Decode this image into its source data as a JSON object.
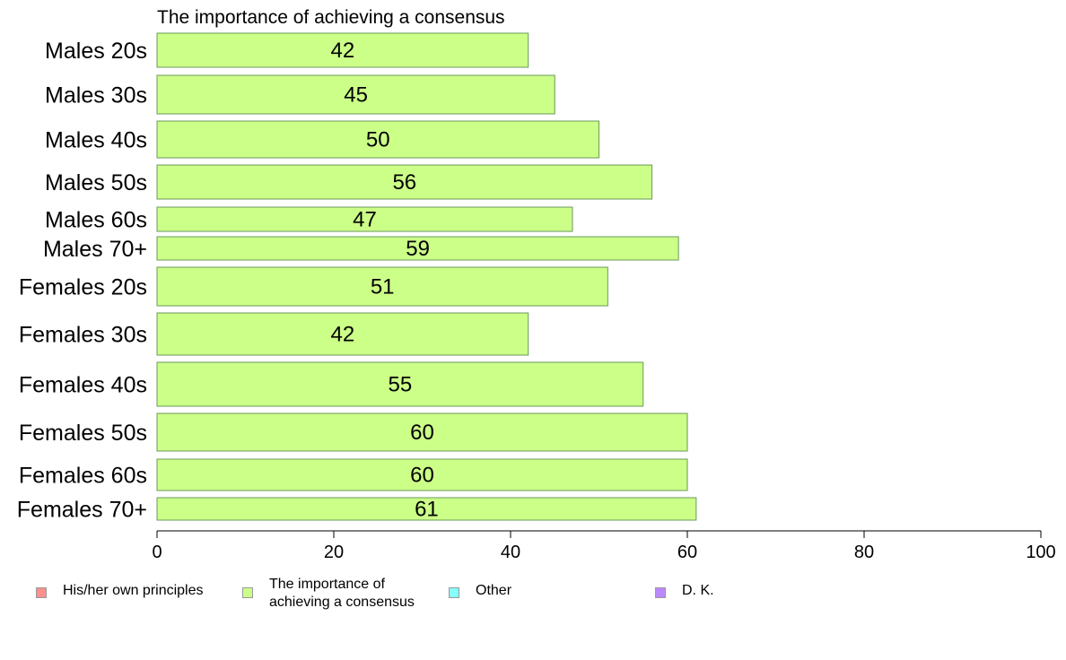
{
  "chart_data": {
    "type": "bar",
    "orientation": "horizontal",
    "title": "The importance of achieving a consensus",
    "categories": [
      "Males 20s",
      "Males 30s",
      "Males 40s",
      "Males 50s",
      "Males 60s",
      "Males 70+",
      "Females 20s",
      "Females 30s",
      "Females 40s",
      "Females 50s",
      "Females 60s",
      "Females 70+"
    ],
    "series": [
      {
        "name": "The importance of achieving a consensus",
        "color": "#ccff88",
        "values": [
          42,
          45,
          50,
          56,
          47,
          59,
          51,
          42,
          55,
          60,
          60,
          61
        ]
      }
    ],
    "xlim": [
      0,
      100
    ],
    "xticks": [
      0,
      20,
      40,
      60,
      80,
      100
    ],
    "grid": false,
    "legend_position": "bottom",
    "legend": [
      {
        "label": "His/her own principles",
        "color": "#ff8e8e"
      },
      {
        "label": "The importance of\nachieving a consensus",
        "color": "#ccff88"
      },
      {
        "label": "Other",
        "color": "#88ffff"
      },
      {
        "label": "D. K.",
        "color": "#bb88ff"
      }
    ]
  }
}
